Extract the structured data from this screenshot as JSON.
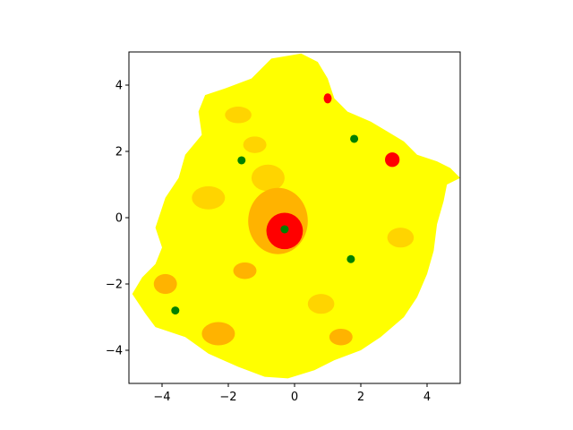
{
  "chart_data": {
    "type": "scatter",
    "title": "",
    "xlabel": "",
    "ylabel": "",
    "xlim": [
      -5,
      5
    ],
    "ylim": [
      -5,
      5
    ],
    "x_ticks": [
      -4,
      -2,
      0,
      2,
      4
    ],
    "y_ticks": [
      -4,
      -2,
      0,
      2,
      4
    ],
    "x_tick_labels": [
      "−4",
      "−2",
      "0",
      "2",
      "4"
    ],
    "y_tick_labels": [
      "−4",
      "−2",
      "0",
      "2",
      "4"
    ],
    "grid": false,
    "legend": "none",
    "colors": {
      "region_low": "#ffff00",
      "region_mid": "#ffd400",
      "region_high": "#ffb300",
      "region_peak": "#ff0000",
      "point": "#008000",
      "axes": "#000000"
    },
    "points": [
      {
        "x": -0.3,
        "y": -0.35
      },
      {
        "x": -1.6,
        "y": 1.73
      },
      {
        "x": 1.8,
        "y": 2.38
      },
      {
        "x": 1.7,
        "y": -1.25
      },
      {
        "x": -3.6,
        "y": -2.8
      }
    ],
    "region_outline": [
      [
        -0.7,
        4.8
      ],
      [
        0.2,
        4.95
      ],
      [
        0.7,
        4.7
      ],
      [
        1.0,
        4.2
      ],
      [
        1.2,
        3.6
      ],
      [
        1.6,
        3.2
      ],
      [
        2.3,
        2.9
      ],
      [
        2.8,
        2.6
      ],
      [
        3.3,
        2.3
      ],
      [
        3.7,
        1.9
      ],
      [
        4.3,
        1.7
      ],
      [
        4.7,
        1.5
      ],
      [
        5.0,
        1.2
      ],
      [
        4.6,
        1.0
      ],
      [
        4.5,
        0.5
      ],
      [
        4.3,
        -0.2
      ],
      [
        4.2,
        -1.0
      ],
      [
        4.0,
        -1.7
      ],
      [
        3.7,
        -2.4
      ],
      [
        3.3,
        -3.0
      ],
      [
        2.6,
        -3.6
      ],
      [
        2.0,
        -4.0
      ],
      [
        1.2,
        -4.3
      ],
      [
        0.6,
        -4.6
      ],
      [
        -0.2,
        -4.85
      ],
      [
        -0.9,
        -4.8
      ],
      [
        -1.7,
        -4.5
      ],
      [
        -2.6,
        -4.1
      ],
      [
        -3.3,
        -3.6
      ],
      [
        -4.2,
        -3.3
      ],
      [
        -4.5,
        -2.9
      ],
      [
        -4.9,
        -2.3
      ],
      [
        -4.6,
        -1.8
      ],
      [
        -4.2,
        -1.4
      ],
      [
        -4.0,
        -0.9
      ],
      [
        -4.2,
        -0.3
      ],
      [
        -3.9,
        0.6
      ],
      [
        -3.5,
        1.2
      ],
      [
        -3.3,
        1.9
      ],
      [
        -2.8,
        2.5
      ],
      [
        -2.9,
        3.2
      ],
      [
        -2.7,
        3.7
      ],
      [
        -2.1,
        3.9
      ],
      [
        -1.3,
        4.2
      ]
    ],
    "hotspots": [
      {
        "x": -0.3,
        "y": -0.4,
        "rx": 0.55,
        "ry": 0.55,
        "level": "peak"
      },
      {
        "x": -0.5,
        "y": -0.1,
        "rx": 0.9,
        "ry": 1.0,
        "level": "high"
      },
      {
        "x": 1.0,
        "y": 3.6,
        "rx": 0.12,
        "ry": 0.15,
        "level": "peak"
      },
      {
        "x": 2.95,
        "y": 1.75,
        "rx": 0.22,
        "ry": 0.22,
        "level": "peak"
      },
      {
        "x": -1.7,
        "y": 3.1,
        "rx": 0.4,
        "ry": 0.25,
        "level": "mid"
      },
      {
        "x": -1.2,
        "y": 2.2,
        "rx": 0.35,
        "ry": 0.25,
        "level": "mid"
      },
      {
        "x": -3.9,
        "y": -2.0,
        "rx": 0.35,
        "ry": 0.3,
        "level": "high"
      },
      {
        "x": -1.5,
        "y": -1.6,
        "rx": 0.35,
        "ry": 0.25,
        "level": "high"
      },
      {
        "x": -2.3,
        "y": -3.5,
        "rx": 0.5,
        "ry": 0.35,
        "level": "high"
      },
      {
        "x": 1.4,
        "y": -3.6,
        "rx": 0.35,
        "ry": 0.25,
        "level": "high"
      },
      {
        "x": -2.6,
        "y": 0.6,
        "rx": 0.5,
        "ry": 0.35,
        "level": "mid"
      },
      {
        "x": 3.2,
        "y": -0.6,
        "rx": 0.4,
        "ry": 0.3,
        "level": "mid"
      },
      {
        "x": 0.8,
        "y": -2.6,
        "rx": 0.4,
        "ry": 0.3,
        "level": "mid"
      },
      {
        "x": -0.8,
        "y": 1.2,
        "rx": 0.5,
        "ry": 0.4,
        "level": "mid"
      }
    ]
  }
}
